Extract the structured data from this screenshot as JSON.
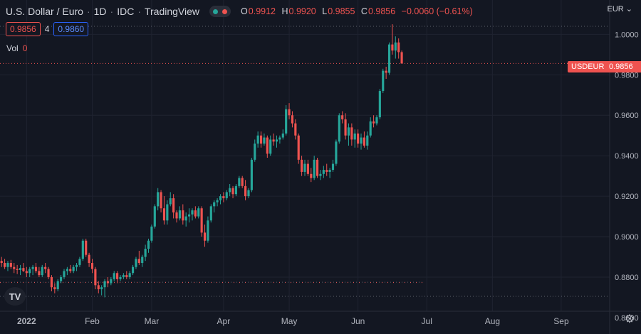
{
  "header": {
    "symbol": "U.S. Dollar / Euro",
    "interval": "1D",
    "exchange": "IDC",
    "source": "TradingView",
    "ohlc": {
      "o_label": "O",
      "o_value": "0.9912",
      "h_label": "H",
      "h_value": "0.9920",
      "l_label": "L",
      "l_value": "0.9855",
      "c_label": "C",
      "c_value": "0.9856",
      "change": "−0.0060 (−0.61%)"
    },
    "bid": "0.9856",
    "spread": "4",
    "ask": "0.9860",
    "vol_label": "Vol",
    "vol_value": "0"
  },
  "currency_selector": "EUR",
  "last_price_badge": {
    "symbol": "USDEUR",
    "price": "0.9856"
  },
  "logo_text": "TV",
  "colors": {
    "up": "#26a69a",
    "down": "#ef5350",
    "background": "#131722",
    "grid": "#1f2330",
    "accent_blue": "#2962ff"
  },
  "icons": {
    "gear": "gear-icon",
    "logo": "tradingview-logo-icon"
  },
  "chart_data": {
    "type": "candlestick",
    "title": "U.S. Dollar / Euro",
    "xlabel": "",
    "ylabel": "",
    "ylim": [
      0.8575,
      1.0075
    ],
    "y_ticks": [
      "1.0000",
      "0.9800",
      "0.9600",
      "0.9400",
      "0.9200",
      "0.9000",
      "0.8800",
      "0.8600"
    ],
    "y_tick_values": [
      1.0,
      0.98,
      0.96,
      0.94,
      0.92,
      0.9,
      0.88,
      0.86
    ],
    "x_ticks": [
      {
        "label": "2022",
        "index": 8
      },
      {
        "label": "Feb",
        "index": 29
      },
      {
        "label": "Mar",
        "index": 48
      },
      {
        "label": "Apr",
        "index": 71
      },
      {
        "label": "May",
        "index": 92
      },
      {
        "label": "Jun",
        "index": 114
      },
      {
        "label": "Jul",
        "index": 136
      },
      {
        "label": "Aug",
        "index": 157
      },
      {
        "label": "Sep",
        "index": 179
      }
    ],
    "num_slots": 195,
    "reference_lines": [
      {
        "value": 1.004,
        "style": "dotted"
      },
      {
        "value": 0.9856,
        "style": "dotted-red"
      },
      {
        "value": 0.8775,
        "style": "dotted-mixed"
      },
      {
        "value": 0.8705,
        "style": "dotted"
      }
    ],
    "candles": [
      [
        0.888,
        0.89,
        0.885,
        0.887
      ],
      [
        0.887,
        0.889,
        0.884,
        0.885
      ],
      [
        0.885,
        0.888,
        0.883,
        0.887
      ],
      [
        0.887,
        0.8885,
        0.884,
        0.885
      ],
      [
        0.885,
        0.887,
        0.882,
        0.884
      ],
      [
        0.884,
        0.886,
        0.8815,
        0.8835
      ],
      [
        0.8835,
        0.886,
        0.881,
        0.8845
      ],
      [
        0.8845,
        0.887,
        0.8825,
        0.883
      ],
      [
        0.883,
        0.885,
        0.88,
        0.882
      ],
      [
        0.882,
        0.885,
        0.88,
        0.884
      ],
      [
        0.884,
        0.886,
        0.881,
        0.885
      ],
      [
        0.885,
        0.887,
        0.882,
        0.883
      ],
      [
        0.883,
        0.885,
        0.88,
        0.881
      ],
      [
        0.881,
        0.886,
        0.88,
        0.885
      ],
      [
        0.885,
        0.887,
        0.882,
        0.884
      ],
      [
        0.884,
        0.885,
        0.879,
        0.88
      ],
      [
        0.88,
        0.881,
        0.873,
        0.875
      ],
      [
        0.875,
        0.877,
        0.872,
        0.874
      ],
      [
        0.874,
        0.879,
        0.873,
        0.878
      ],
      [
        0.878,
        0.881,
        0.877,
        0.88
      ],
      [
        0.88,
        0.884,
        0.879,
        0.883
      ],
      [
        0.883,
        0.885,
        0.881,
        0.884
      ],
      [
        0.884,
        0.886,
        0.882,
        0.883
      ],
      [
        0.883,
        0.886,
        0.882,
        0.885
      ],
      [
        0.885,
        0.887,
        0.883,
        0.886
      ],
      [
        0.886,
        0.89,
        0.885,
        0.889
      ],
      [
        0.889,
        0.899,
        0.888,
        0.898
      ],
      [
        0.898,
        0.899,
        0.89,
        0.891
      ],
      [
        0.891,
        0.892,
        0.885,
        0.887
      ],
      [
        0.887,
        0.889,
        0.882,
        0.884
      ],
      [
        0.884,
        0.885,
        0.874,
        0.876
      ],
      [
        0.876,
        0.878,
        0.872,
        0.874
      ],
      [
        0.874,
        0.876,
        0.871,
        0.875
      ],
      [
        0.875,
        0.879,
        0.87,
        0.878
      ],
      [
        0.878,
        0.88,
        0.875,
        0.877
      ],
      [
        0.877,
        0.88,
        0.876,
        0.879
      ],
      [
        0.879,
        0.883,
        0.878,
        0.882
      ],
      [
        0.882,
        0.883,
        0.877,
        0.879
      ],
      [
        0.879,
        0.881,
        0.878,
        0.88
      ],
      [
        0.88,
        0.882,
        0.879,
        0.881
      ],
      [
        0.881,
        0.883,
        0.879,
        0.88
      ],
      [
        0.88,
        0.883,
        0.879,
        0.882
      ],
      [
        0.882,
        0.886,
        0.881,
        0.885
      ],
      [
        0.885,
        0.89,
        0.884,
        0.889
      ],
      [
        0.889,
        0.893,
        0.886,
        0.887
      ],
      [
        0.887,
        0.891,
        0.885,
        0.89
      ],
      [
        0.89,
        0.896,
        0.888,
        0.894
      ],
      [
        0.894,
        0.899,
        0.892,
        0.898
      ],
      [
        0.898,
        0.906,
        0.897,
        0.905
      ],
      [
        0.905,
        0.916,
        0.904,
        0.915
      ],
      [
        0.915,
        0.924,
        0.913,
        0.922
      ],
      [
        0.922,
        0.923,
        0.912,
        0.914
      ],
      [
        0.914,
        0.92,
        0.906,
        0.908
      ],
      [
        0.908,
        0.918,
        0.906,
        0.916
      ],
      [
        0.916,
        0.922,
        0.915,
        0.919
      ],
      [
        0.919,
        0.921,
        0.909,
        0.912
      ],
      [
        0.912,
        0.913,
        0.907,
        0.909
      ],
      [
        0.909,
        0.915,
        0.908,
        0.913
      ],
      [
        0.913,
        0.916,
        0.906,
        0.908
      ],
      [
        0.908,
        0.912,
        0.905,
        0.91
      ],
      [
        0.91,
        0.914,
        0.907,
        0.911
      ],
      [
        0.911,
        0.914,
        0.908,
        0.913
      ],
      [
        0.913,
        0.915,
        0.909,
        0.91
      ],
      [
        0.91,
        0.915,
        0.909,
        0.914
      ],
      [
        0.914,
        0.915,
        0.9,
        0.902
      ],
      [
        0.902,
        0.906,
        0.895,
        0.898
      ],
      [
        0.898,
        0.91,
        0.897,
        0.908
      ],
      [
        0.908,
        0.916,
        0.907,
        0.915
      ],
      [
        0.915,
        0.918,
        0.912,
        0.917
      ],
      [
        0.917,
        0.919,
        0.915,
        0.918
      ],
      [
        0.918,
        0.921,
        0.916,
        0.92
      ],
      [
        0.92,
        0.922,
        0.917,
        0.919
      ],
      [
        0.919,
        0.923,
        0.918,
        0.922
      ],
      [
        0.922,
        0.926,
        0.92,
        0.924
      ],
      [
        0.924,
        0.925,
        0.919,
        0.921
      ],
      [
        0.921,
        0.926,
        0.92,
        0.925
      ],
      [
        0.925,
        0.93,
        0.924,
        0.929
      ],
      [
        0.929,
        0.93,
        0.924,
        0.925
      ],
      [
        0.925,
        0.928,
        0.918,
        0.92
      ],
      [
        0.92,
        0.924,
        0.919,
        0.923
      ],
      [
        0.923,
        0.939,
        0.922,
        0.938
      ],
      [
        0.938,
        0.948,
        0.937,
        0.946
      ],
      [
        0.946,
        0.952,
        0.944,
        0.95
      ],
      [
        0.95,
        0.952,
        0.944,
        0.946
      ],
      [
        0.946,
        0.951,
        0.945,
        0.949
      ],
      [
        0.949,
        0.95,
        0.939,
        0.941
      ],
      [
        0.941,
        0.95,
        0.94,
        0.948
      ],
      [
        0.948,
        0.951,
        0.945,
        0.947
      ],
      [
        0.947,
        0.95,
        0.944,
        0.948
      ],
      [
        0.948,
        0.95,
        0.946,
        0.949
      ],
      [
        0.949,
        0.953,
        0.948,
        0.951
      ],
      [
        0.951,
        0.965,
        0.95,
        0.963
      ],
      [
        0.963,
        0.966,
        0.958,
        0.96
      ],
      [
        0.96,
        0.962,
        0.954,
        0.956
      ],
      [
        0.956,
        0.958,
        0.948,
        0.95
      ],
      [
        0.95,
        0.951,
        0.936,
        0.938
      ],
      [
        0.938,
        0.94,
        0.93,
        0.932
      ],
      [
        0.932,
        0.938,
        0.93,
        0.936
      ],
      [
        0.936,
        0.938,
        0.93,
        0.931
      ],
      [
        0.931,
        0.934,
        0.927,
        0.929
      ],
      [
        0.929,
        0.94,
        0.928,
        0.938
      ],
      [
        0.938,
        0.939,
        0.929,
        0.93
      ],
      [
        0.93,
        0.933,
        0.928,
        0.931
      ],
      [
        0.931,
        0.935,
        0.929,
        0.933
      ],
      [
        0.933,
        0.936,
        0.93,
        0.932
      ],
      [
        0.932,
        0.934,
        0.929,
        0.933
      ],
      [
        0.933,
        0.938,
        0.932,
        0.936
      ],
      [
        0.936,
        0.948,
        0.935,
        0.947
      ],
      [
        0.947,
        0.961,
        0.946,
        0.96
      ],
      [
        0.96,
        0.962,
        0.956,
        0.958
      ],
      [
        0.958,
        0.961,
        0.948,
        0.95
      ],
      [
        0.95,
        0.956,
        0.945,
        0.954
      ],
      [
        0.954,
        0.956,
        0.945,
        0.948
      ],
      [
        0.948,
        0.953,
        0.944,
        0.951
      ],
      [
        0.951,
        0.953,
        0.944,
        0.946
      ],
      [
        0.946,
        0.951,
        0.943,
        0.949
      ],
      [
        0.949,
        0.952,
        0.944,
        0.945
      ],
      [
        0.945,
        0.952,
        0.943,
        0.95
      ],
      [
        0.95,
        0.959,
        0.949,
        0.957
      ],
      [
        0.957,
        0.96,
        0.954,
        0.956
      ],
      [
        0.956,
        0.96,
        0.955,
        0.959
      ],
      [
        0.959,
        0.973,
        0.958,
        0.972
      ],
      [
        0.972,
        0.983,
        0.971,
        0.982
      ],
      [
        0.982,
        0.984,
        0.978,
        0.981
      ],
      [
        0.981,
        0.996,
        0.98,
        0.995
      ],
      [
        0.995,
        1.005,
        0.99,
        0.992
      ],
      [
        0.992,
        0.999,
        0.988,
        0.996
      ],
      [
        0.996,
        0.998,
        0.988,
        0.9912
      ],
      [
        0.9912,
        0.992,
        0.9855,
        0.9856
      ]
    ],
    "candle_start_index": 0
  }
}
